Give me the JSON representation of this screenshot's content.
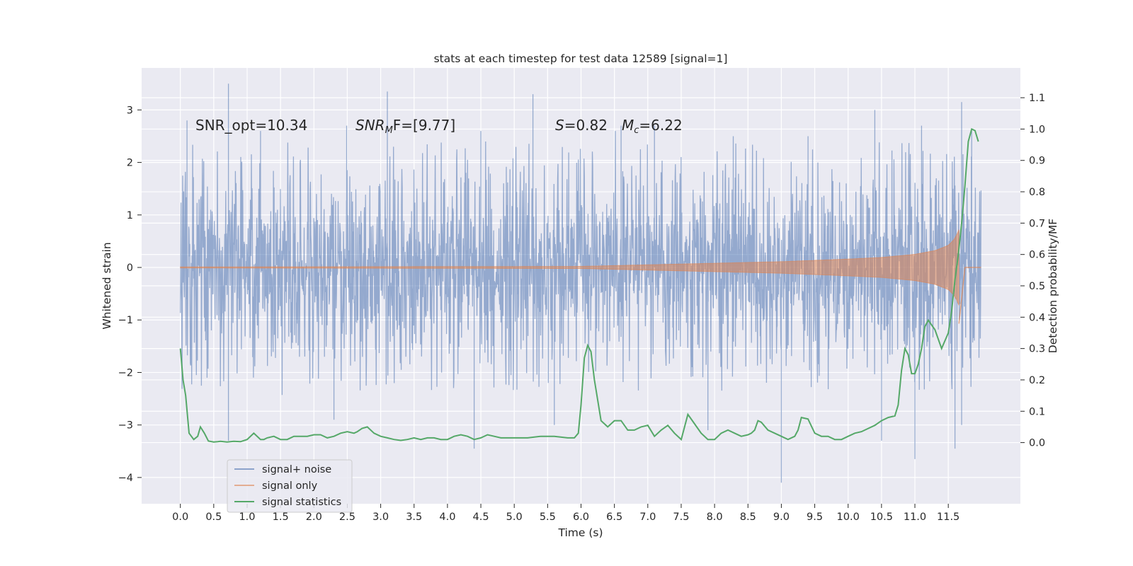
{
  "chart_data": {
    "type": "line",
    "title": "stats at each timestep for test data 12589 [signal=1]",
    "xlabel": "Time (s)",
    "ylabel": "Whitened strain",
    "y2label": "Detection probability/MF",
    "xlim": [
      -0.58,
      12.58
    ],
    "ylim": [
      -4.5,
      3.8
    ],
    "y2lim": [
      -0.195,
      1.195
    ],
    "grid": true,
    "legend_position": "lower-left",
    "xticks": [
      "0.0",
      "0.5",
      "1.0",
      "1.5",
      "2.0",
      "2.5",
      "3.0",
      "3.5",
      "4.0",
      "4.5",
      "5.0",
      "5.5",
      "6.0",
      "6.5",
      "7.0",
      "7.5",
      "8.0",
      "8.5",
      "9.0",
      "9.5",
      "10.0",
      "10.5",
      "11.0",
      "11.5"
    ],
    "yticks": [
      "3",
      "2",
      "1",
      "0",
      "−1",
      "−2",
      "−3",
      "−4"
    ],
    "y2ticks": [
      "1.1",
      "1.0",
      "0.9",
      "0.8",
      "0.7",
      "0.6",
      "0.5",
      "0.4",
      "0.3",
      "0.2",
      "0.1",
      "0.0"
    ],
    "annotations": {
      "snr_opt": "SNR_opt=10.34",
      "snr_mf_label": "SNR",
      "snr_mf_sub": "M",
      "snr_mf_tail": "F=[9.77]",
      "s_label": "S",
      "s_value": "=0.82",
      "mc_label": "M",
      "mc_sub": "c",
      "mc_value": "=6.22"
    },
    "series": [
      {
        "name": "signal+ noise",
        "axis": "left",
        "color": "#4c72b0",
        "t_start": 0.0,
        "t_end": 11.99,
        "envelope_note": "dense noise, typical range -1.5 to 1.5, peaks to about 3.5 / -4.1",
        "peaks": [
          [
            0.1,
            2.8
          ],
          [
            0.72,
            3.5
          ],
          [
            1.2,
            2.6
          ],
          [
            2.49,
            2.7
          ],
          [
            3.1,
            3.35
          ],
          [
            4.5,
            2.6
          ],
          [
            5.28,
            3.3
          ],
          [
            6.6,
            2.7
          ],
          [
            7.1,
            2.7
          ],
          [
            8.28,
            2.5
          ],
          [
            9.4,
            2.5
          ],
          [
            10.4,
            3.0
          ],
          [
            11.1,
            2.7
          ],
          [
            11.7,
            3.15
          ],
          [
            11.85,
            2.6
          ],
          [
            0.72,
            -3.3
          ],
          [
            2.3,
            -2.9
          ],
          [
            4.4,
            -3.45
          ],
          [
            5.6,
            -3.0
          ],
          [
            7.9,
            -3.1
          ],
          [
            9.0,
            -4.1
          ],
          [
            10.5,
            -3.3
          ],
          [
            11.0,
            -3.65
          ],
          [
            11.6,
            -3.45
          ],
          [
            11.7,
            -3.0
          ]
        ]
      },
      {
        "name": "signal only",
        "axis": "left",
        "color": "#dd8452",
        "t_start": 0.0,
        "t_end": 11.66,
        "envelope": [
          [
            0.0,
            0.01
          ],
          [
            6.0,
            0.02
          ],
          [
            7.0,
            0.05
          ],
          [
            8.0,
            0.08
          ],
          [
            9.0,
            0.11
          ],
          [
            10.0,
            0.16
          ],
          [
            10.5,
            0.19
          ],
          [
            11.0,
            0.25
          ],
          [
            11.3,
            0.32
          ],
          [
            11.5,
            0.42
          ],
          [
            11.6,
            0.55
          ],
          [
            11.66,
            0.72
          ]
        ],
        "tail": [
          [
            11.66,
            -1.07
          ],
          [
            11.75,
            0.0
          ],
          [
            11.99,
            0.0
          ]
        ]
      },
      {
        "name": "signal statistics",
        "axis": "right",
        "color": "#55a868",
        "x": [
          0.0,
          0.04,
          0.08,
          0.13,
          0.2,
          0.26,
          0.3,
          0.36,
          0.42,
          0.5,
          0.56,
          0.6,
          0.7,
          0.8,
          0.9,
          1.0,
          1.1,
          1.2,
          1.25,
          1.3,
          1.4,
          1.5,
          1.6,
          1.7,
          1.8,
          1.9,
          2.0,
          2.1,
          2.2,
          2.3,
          2.4,
          2.5,
          2.6,
          2.65,
          2.72,
          2.8,
          2.9,
          3.0,
          3.1,
          3.2,
          3.3,
          3.4,
          3.5,
          3.6,
          3.7,
          3.8,
          3.9,
          4.0,
          4.1,
          4.2,
          4.3,
          4.4,
          4.5,
          4.6,
          4.7,
          4.8,
          5.0,
          5.2,
          5.4,
          5.6,
          5.8,
          5.9,
          5.96,
          6.0,
          6.05,
          6.1,
          6.15,
          6.2,
          6.3,
          6.4,
          6.5,
          6.6,
          6.7,
          6.8,
          6.9,
          7.0,
          7.1,
          7.2,
          7.3,
          7.4,
          7.5,
          7.6,
          7.7,
          7.8,
          7.9,
          8.0,
          8.1,
          8.2,
          8.3,
          8.4,
          8.5,
          8.55,
          8.6,
          8.65,
          8.7,
          8.8,
          9.0,
          9.1,
          9.2,
          9.25,
          9.3,
          9.4,
          9.5,
          9.6,
          9.7,
          9.8,
          9.9,
          10.0,
          10.1,
          10.2,
          10.3,
          10.4,
          10.5,
          10.6,
          10.7,
          10.75,
          10.8,
          10.85,
          10.9,
          10.95,
          11.0,
          11.05,
          11.1,
          11.15,
          11.2,
          11.3,
          11.4,
          11.5,
          11.55,
          11.6,
          11.65,
          11.7,
          11.75,
          11.8,
          11.85,
          11.9,
          11.95
        ],
        "y": [
          0.3,
          0.2,
          0.15,
          0.03,
          0.01,
          0.02,
          0.05,
          0.03,
          0.005,
          0.002,
          0.003,
          0.004,
          0.002,
          0.004,
          0.003,
          0.01,
          0.03,
          0.01,
          0.01,
          0.015,
          0.02,
          0.01,
          0.01,
          0.02,
          0.02,
          0.02,
          0.025,
          0.025,
          0.015,
          0.02,
          0.03,
          0.035,
          0.03,
          0.035,
          0.045,
          0.05,
          0.03,
          0.02,
          0.015,
          0.01,
          0.007,
          0.01,
          0.015,
          0.01,
          0.015,
          0.015,
          0.01,
          0.01,
          0.02,
          0.025,
          0.02,
          0.01,
          0.015,
          0.025,
          0.02,
          0.015,
          0.015,
          0.015,
          0.02,
          0.02,
          0.015,
          0.015,
          0.03,
          0.12,
          0.27,
          0.31,
          0.29,
          0.2,
          0.07,
          0.05,
          0.07,
          0.07,
          0.04,
          0.04,
          0.05,
          0.055,
          0.02,
          0.04,
          0.055,
          0.03,
          0.01,
          0.09,
          0.06,
          0.03,
          0.01,
          0.01,
          0.03,
          0.04,
          0.03,
          0.02,
          0.025,
          0.03,
          0.04,
          0.07,
          0.065,
          0.04,
          0.02,
          0.01,
          0.02,
          0.04,
          0.08,
          0.075,
          0.03,
          0.02,
          0.02,
          0.01,
          0.01,
          0.02,
          0.03,
          0.035,
          0.045,
          0.055,
          0.07,
          0.08,
          0.085,
          0.12,
          0.23,
          0.3,
          0.28,
          0.22,
          0.22,
          0.25,
          0.3,
          0.37,
          0.39,
          0.36,
          0.3,
          0.35,
          0.42,
          0.52,
          0.6,
          0.7,
          0.82,
          0.96,
          1.0,
          0.995,
          0.96
        ]
      }
    ]
  }
}
